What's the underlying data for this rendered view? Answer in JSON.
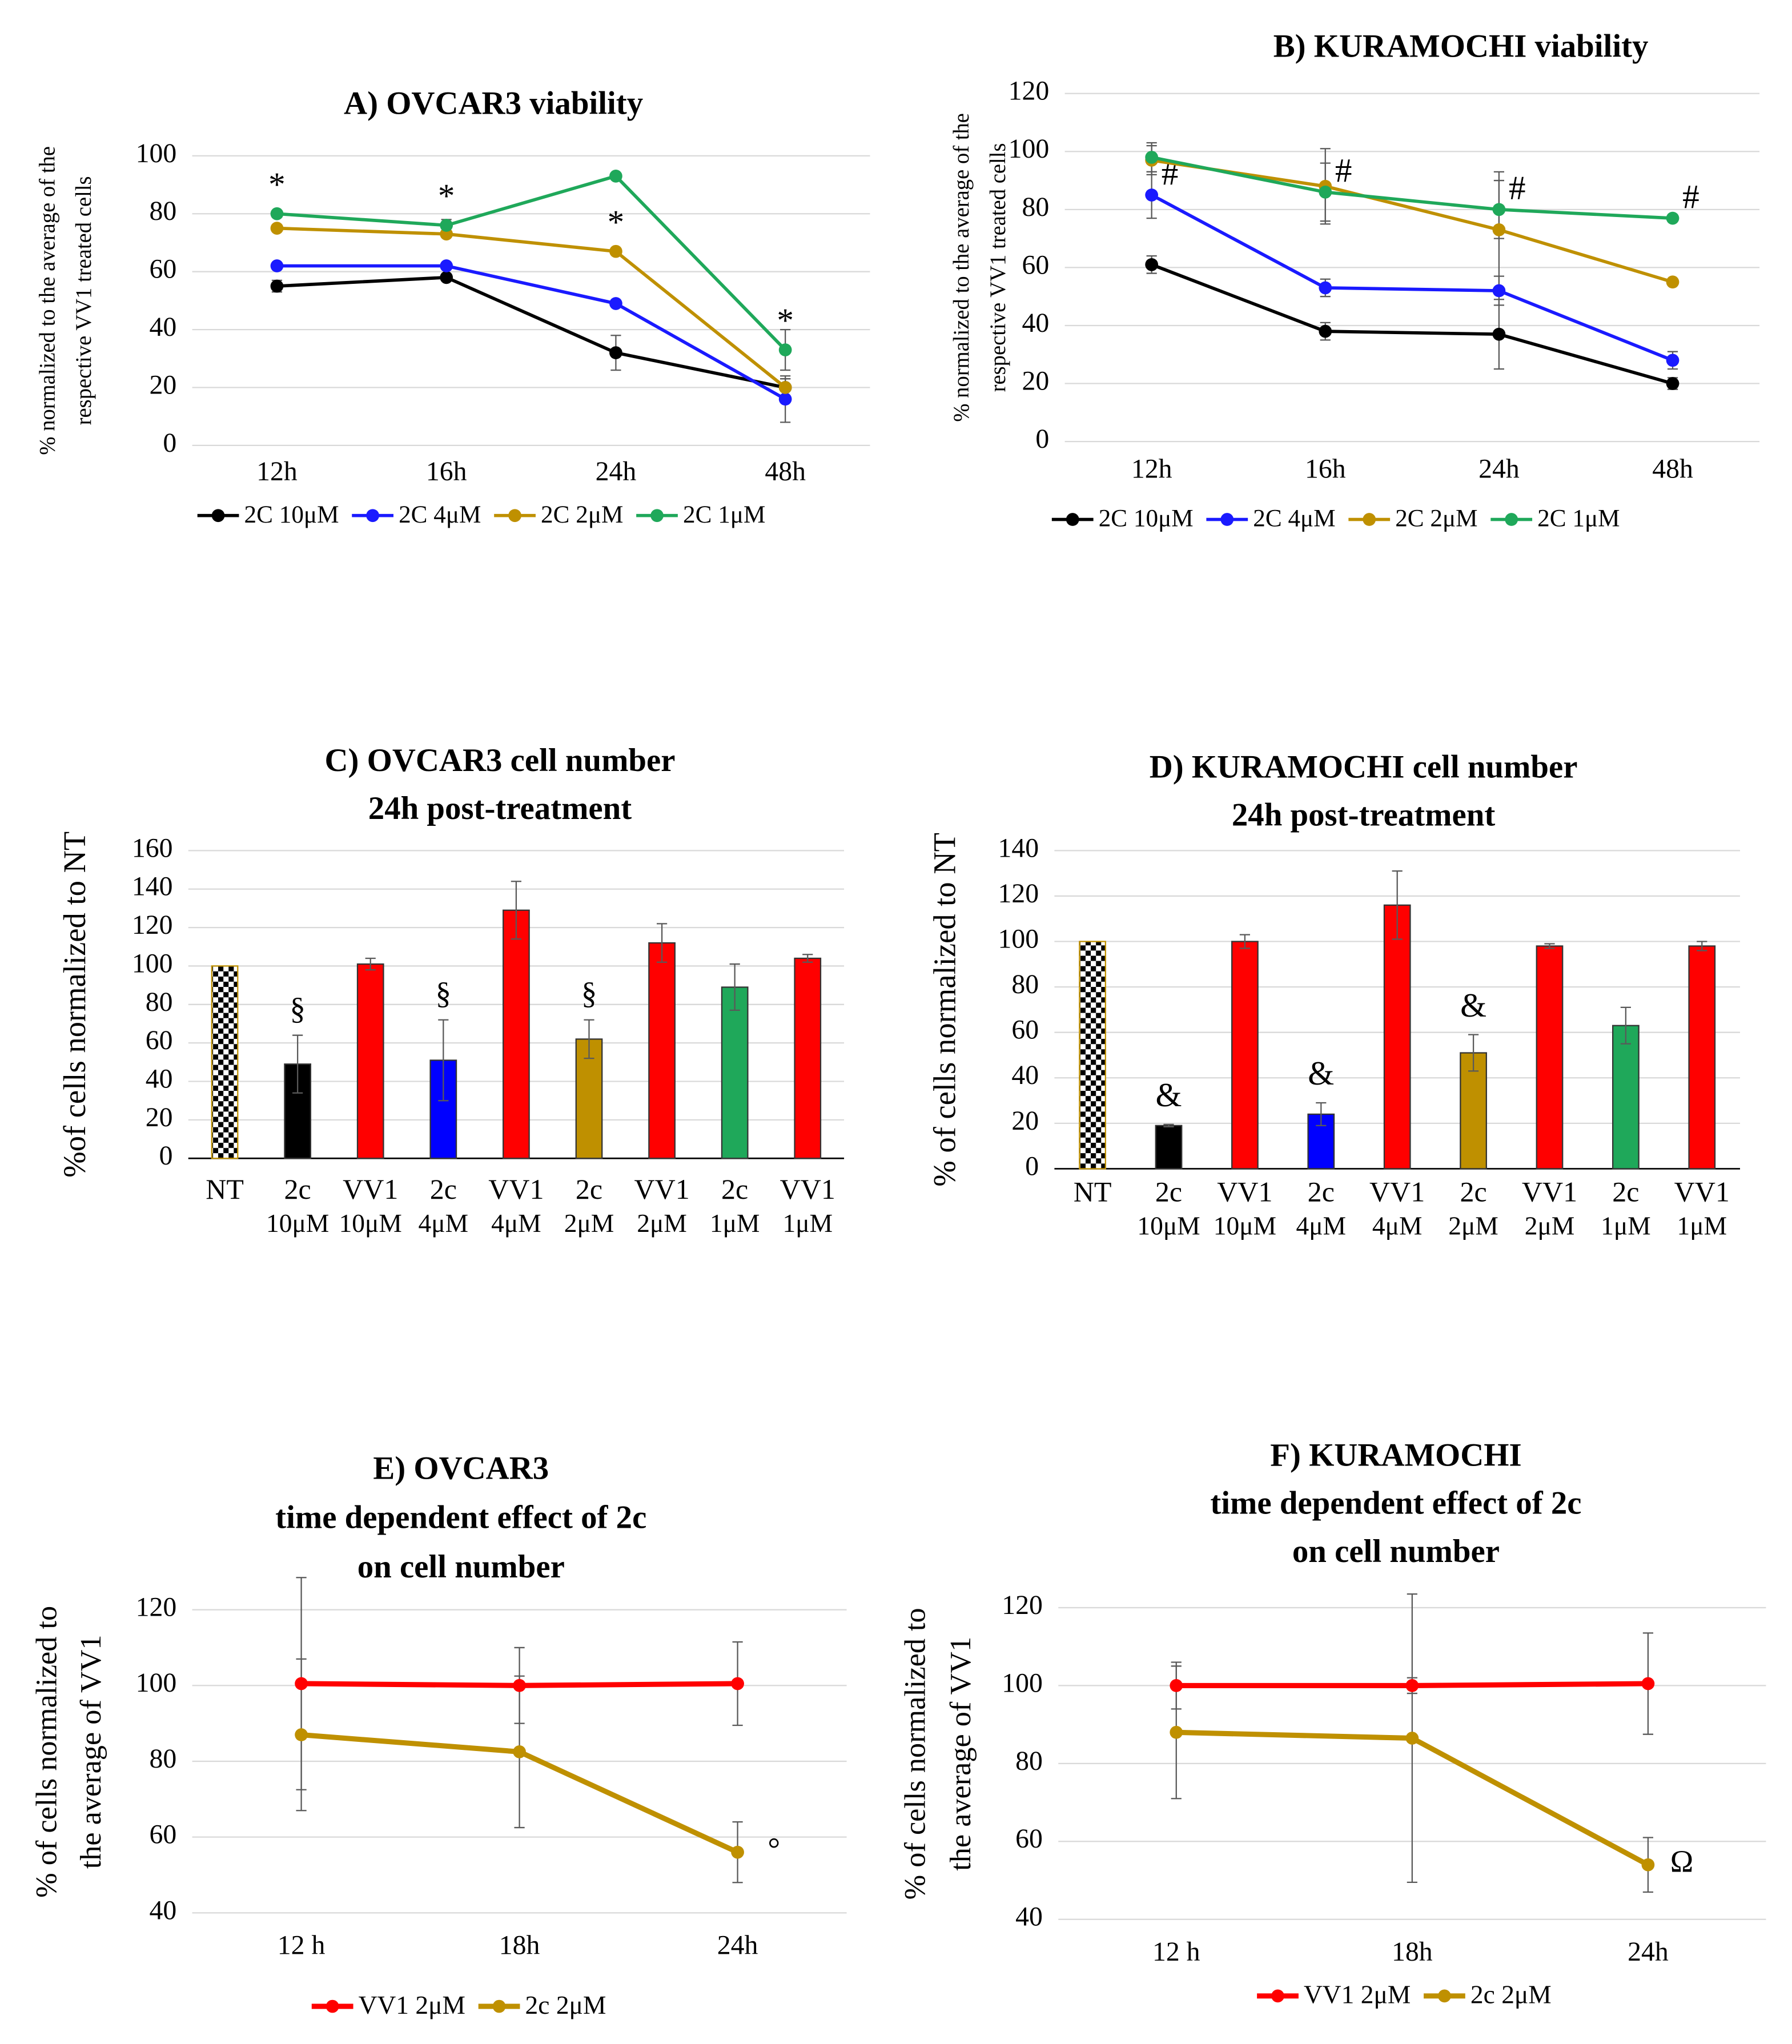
{
  "chart_data": [
    {
      "type": "line",
      "title": [
        "A) OVCAR3 viability"
      ],
      "ylabel": [
        "% normalized to the average of the",
        "respective VV1 treated cells"
      ],
      "categories": [
        "12h",
        "16h",
        "24h",
        "48h"
      ],
      "ylim": [
        0,
        100
      ],
      "yticks": [
        0,
        20,
        40,
        60,
        80,
        100
      ],
      "grid": true,
      "series": [
        {
          "name": "2C 10μM",
          "color": "#000000",
          "values": [
            55,
            58,
            32,
            20
          ],
          "errors": [
            2,
            1,
            6,
            3
          ],
          "markers": [
            null,
            null,
            null,
            null
          ]
        },
        {
          "name": "2C 4μM",
          "color": "#1a1aff",
          "values": [
            62,
            62,
            49,
            16
          ],
          "errors": [
            1,
            1,
            1,
            8
          ],
          "markers": [
            null,
            null,
            null,
            null
          ]
        },
        {
          "name": "2C 2μM",
          "color": "#bf9000",
          "values": [
            75,
            73,
            67,
            20
          ],
          "errors": [
            1,
            1,
            1,
            3
          ],
          "markers": [
            null,
            null,
            "*",
            null
          ]
        },
        {
          "name": "2C 1μM",
          "color": "#1fa85a",
          "values": [
            80,
            76,
            93,
            33
          ],
          "errors": [
            1,
            2,
            1,
            7
          ],
          "markers": [
            "*",
            "*",
            null,
            "*"
          ]
        }
      ]
    },
    {
      "type": "line",
      "title": [
        "B) KURAMOCHI viability"
      ],
      "ylabel": [
        "% normalized to the average of the",
        "respective VV1  treated cells"
      ],
      "categories": [
        "12h",
        "16h",
        "24h",
        "48h"
      ],
      "ylim": [
        0,
        120
      ],
      "yticks": [
        0,
        20,
        40,
        60,
        80,
        100,
        120
      ],
      "grid": true,
      "series": [
        {
          "name": "2C 10μM",
          "color": "#000000",
          "values": [
            61,
            38,
            37,
            20
          ],
          "errors": [
            3,
            3,
            12,
            2
          ],
          "markers": [
            null,
            null,
            null,
            null
          ]
        },
        {
          "name": "2C 4μM",
          "color": "#1a1aff",
          "values": [
            85,
            53,
            52,
            28
          ],
          "errors": [
            8,
            3,
            5,
            3
          ],
          "markers": [
            "#",
            null,
            null,
            null
          ]
        },
        {
          "name": "2C 2μM",
          "color": "#bf9000",
          "values": [
            97,
            88,
            73,
            55
          ],
          "errors": [
            5,
            13,
            20,
            1
          ],
          "markers": [
            null,
            null,
            null,
            null
          ]
        },
        {
          "name": "2C 1μM",
          "color": "#1fa85a",
          "values": [
            98,
            86,
            80,
            77
          ],
          "errors": [
            5,
            10,
            10,
            1
          ],
          "markers": [
            null,
            "#",
            "#",
            "#"
          ]
        }
      ]
    },
    {
      "type": "bar",
      "title": [
        "C) OVCAR3 cell number",
        "24h post-treatment"
      ],
      "ylabel": [
        "%of cells  normalized to NT"
      ],
      "categories": [
        [
          "NT"
        ],
        [
          "2c",
          "10μM"
        ],
        [
          "VV1",
          "10μM"
        ],
        [
          "2c",
          "4μM"
        ],
        [
          "VV1",
          "4μM"
        ],
        [
          "2c",
          "2μM"
        ],
        [
          "VV1",
          "2μM"
        ],
        [
          "2c",
          "1μM"
        ],
        [
          "VV1",
          "1μM"
        ]
      ],
      "ylim": [
        0,
        160
      ],
      "yticks": [
        0,
        20,
        40,
        60,
        80,
        100,
        120,
        140,
        160
      ],
      "grid": true,
      "values": [
        100,
        49,
        101,
        51,
        129,
        62,
        112,
        89,
        104
      ],
      "errors": [
        0,
        15,
        3,
        21,
        15,
        10,
        10,
        12,
        2
      ],
      "colors": [
        "checkered",
        "#000000",
        "#ff0000",
        "#0000ff",
        "#ff0000",
        "#bf9000",
        "#ff0000",
        "#1fa85a",
        "#ff0000"
      ],
      "markers": [
        null,
        "§",
        null,
        "§",
        null,
        "§",
        null,
        null,
        null
      ]
    },
    {
      "type": "bar",
      "title": [
        "D) KURAMOCHI cell number",
        "24h post-treatment"
      ],
      "ylabel": [
        "% of cells  normalized to NT"
      ],
      "categories": [
        [
          "NT"
        ],
        [
          "2c",
          "10μM"
        ],
        [
          "VV1",
          "10μM"
        ],
        [
          "2c",
          "4μM"
        ],
        [
          "VV1",
          "4μM"
        ],
        [
          "2c",
          "2μM"
        ],
        [
          "VV1",
          "2μM"
        ],
        [
          "2c",
          "1μM"
        ],
        [
          "VV1",
          "1μM"
        ]
      ],
      "ylim": [
        0,
        140
      ],
      "yticks": [
        0,
        20,
        40,
        60,
        80,
        100,
        120,
        140
      ],
      "grid": true,
      "values": [
        100,
        19,
        100,
        24,
        116,
        51,
        98,
        63,
        98
      ],
      "errors": [
        0,
        0.5,
        3,
        5,
        15,
        8,
        1,
        8,
        2
      ],
      "colors": [
        "checkered",
        "#000000",
        "#ff0000",
        "#0000ff",
        "#ff0000",
        "#bf9000",
        "#ff0000",
        "#1fa85a",
        "#ff0000"
      ],
      "markers": [
        null,
        "&",
        null,
        "&",
        null,
        "&",
        null,
        null,
        null
      ]
    },
    {
      "type": "line",
      "title": [
        "E) OVCAR3",
        "time dependent effect of 2c",
        "on cell number"
      ],
      "ylabel": [
        "% of cells normalized to",
        "the average of  VV1"
      ],
      "categories": [
        "12 h",
        "18h",
        "24h"
      ],
      "ylim": [
        40,
        125
      ],
      "yticks": [
        40,
        60,
        80,
        100,
        120
      ],
      "grid": true,
      "thick": true,
      "series": [
        {
          "name": "VV1 2μM",
          "color": "#ff0000",
          "values": [
            100.5,
            100,
            100.5
          ],
          "errors": [
            28,
            10,
            11
          ],
          "markers": [
            null,
            null,
            null
          ]
        },
        {
          "name": "2c 2μM",
          "color": "#bf9000",
          "values": [
            87,
            82.5,
            56
          ],
          "errors": [
            20,
            20,
            8
          ],
          "markers": [
            null,
            null,
            "°"
          ]
        }
      ]
    },
    {
      "type": "line",
      "title": [
        "F) KURAMOCHI",
        "time dependent effect of 2c",
        "on cell number"
      ],
      "ylabel": [
        "% of cells normalized to",
        "the average of  VV1"
      ],
      "categories": [
        "12 h",
        "18h",
        "24h"
      ],
      "ylim": [
        40,
        125
      ],
      "yticks": [
        40,
        60,
        80,
        100,
        120
      ],
      "grid": true,
      "thick": true,
      "series": [
        {
          "name": "VV1 2μM",
          "color": "#ff0000",
          "values": [
            100,
            100,
            100.5
          ],
          "errors": [
            6,
            2,
            13
          ],
          "markers": [
            null,
            null,
            null
          ]
        },
        {
          "name": "2c 2μM",
          "color": "#bf9000",
          "values": [
            88,
            86.5,
            54
          ],
          "errors": [
            17,
            37,
            7
          ],
          "markers": [
            null,
            null,
            "Ω"
          ]
        }
      ]
    }
  ]
}
